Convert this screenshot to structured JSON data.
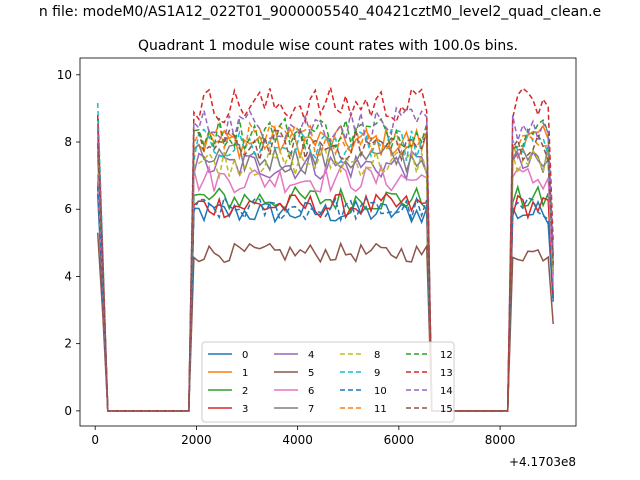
{
  "suptitle": "n file: modeM0/AS1A12_022T01_9000005540_40421cztM0_level2_quad_clean.e",
  "chart_data": {
    "type": "line",
    "title": "Quadrant 1 module wise count rates with 100.0s bins.",
    "xlabel": "",
    "ylabel": "",
    "x_offset_label": "+4.1703e8",
    "xlim": [
      -300,
      9500
    ],
    "ylim": [
      -0.45,
      10.5
    ],
    "xticks": [
      0,
      2000,
      4000,
      6000,
      8000
    ],
    "yticks": [
      0,
      2,
      4,
      6,
      8,
      10
    ],
    "legend": {
      "position": "lower center",
      "ncol": 4
    },
    "series": [
      {
        "name": "0",
        "color": "#1f77b4",
        "dash": false,
        "level": 5.9,
        "start": 6.4
      },
      {
        "name": "1",
        "color": "#ff7f0e",
        "dash": false,
        "level": 8.0,
        "start": 8.3
      },
      {
        "name": "2",
        "color": "#2ca02c",
        "dash": false,
        "level": 6.3,
        "start": 6.9
      },
      {
        "name": "3",
        "color": "#d62728",
        "dash": false,
        "level": 6.1,
        "start": 6.7
      },
      {
        "name": "4",
        "color": "#9467bd",
        "dash": false,
        "level": 7.3,
        "start": 7.6
      },
      {
        "name": "5",
        "color": "#8c564b",
        "dash": false,
        "level": 4.7,
        "start": 5.3
      },
      {
        "name": "6",
        "color": "#e377c2",
        "dash": false,
        "level": 6.9,
        "start": 7.2
      },
      {
        "name": "7",
        "color": "#7f7f7f",
        "dash": false,
        "level": 7.5,
        "start": 7.9
      },
      {
        "name": "8",
        "color": "#bcbd22",
        "dash": true,
        "level": 7.4,
        "start": 8.2
      },
      {
        "name": "9",
        "color": "#17becf",
        "dash": true,
        "level": 7.9,
        "start": 9.0
      },
      {
        "name": "10",
        "color": "#1f77b4",
        "dash": true,
        "level": 6.0,
        "start": 6.6
      },
      {
        "name": "11",
        "color": "#ff7f0e",
        "dash": true,
        "level": 8.1,
        "start": 8.5
      },
      {
        "name": "12",
        "color": "#2ca02c",
        "dash": true,
        "level": 8.3,
        "start": 8.6
      },
      {
        "name": "13",
        "color": "#d62728",
        "dash": true,
        "level": 9.1,
        "start": 8.9
      },
      {
        "name": "14",
        "color": "#9467bd",
        "dash": true,
        "level": 8.5,
        "start": 8.4
      },
      {
        "name": "15",
        "color": "#8c564b",
        "dash": true,
        "level": 7.9,
        "start": 8.1
      }
    ],
    "segments": [
      {
        "x_start": 50,
        "x_end": 250,
        "shape": "decay"
      },
      {
        "x_start": 250,
        "x_end": 1850,
        "shape": "zero"
      },
      {
        "x_start": 1850,
        "x_end": 6650,
        "shape": "plateau"
      },
      {
        "x_start": 6650,
        "x_end": 8150,
        "shape": "zero"
      },
      {
        "x_start": 8150,
        "x_end": 9050,
        "shape": "plateau"
      }
    ],
    "bin_seconds": 100
  }
}
